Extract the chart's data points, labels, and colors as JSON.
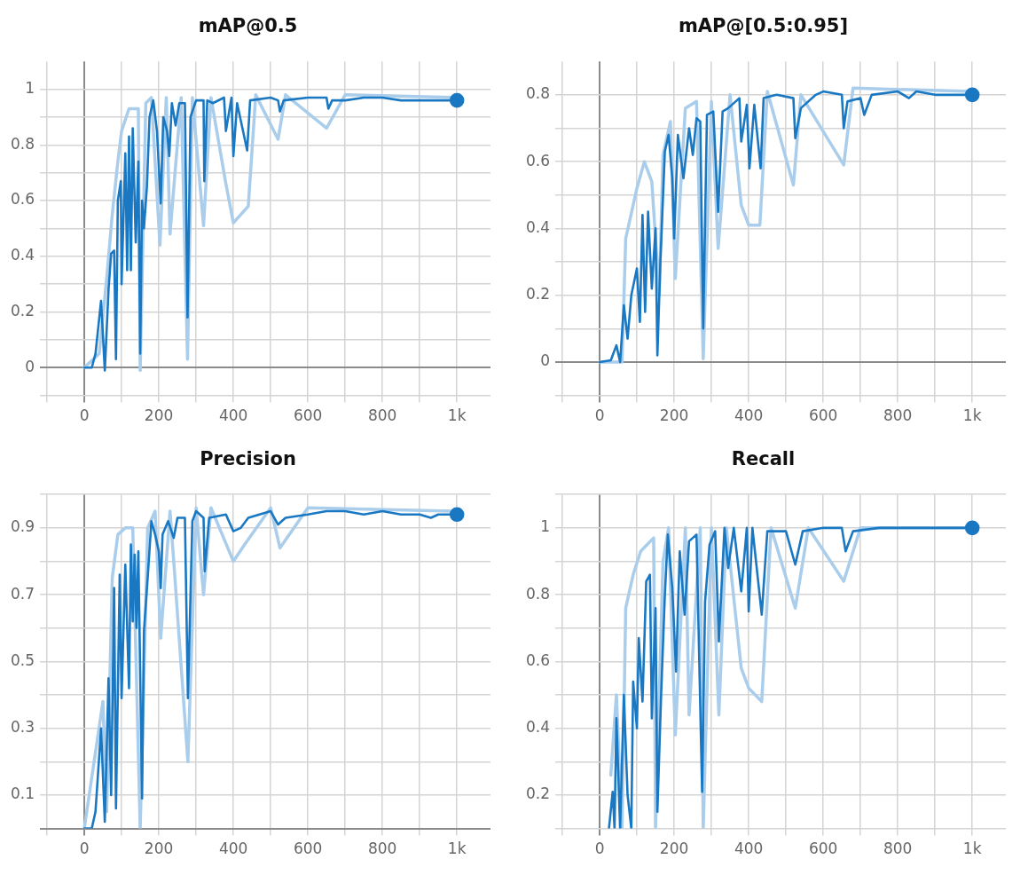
{
  "chart_data": [
    {
      "type": "line",
      "title": "mAP@0.5",
      "xlim": [
        -100,
        1090
      ],
      "ylim": [
        -0.1,
        1.1
      ],
      "xticks": [
        {
          "value": -100,
          "label": null
        },
        0,
        {
          "value": 100,
          "label": null
        },
        200,
        {
          "value": 300,
          "label": null
        },
        400,
        {
          "value": 500,
          "label": null
        },
        600,
        {
          "value": 700,
          "label": null
        },
        800,
        {
          "value": 900,
          "label": null
        },
        {
          "value": 1000,
          "label": "1k"
        }
      ],
      "yticks": [
        {
          "value": -0.1,
          "label": null
        },
        0,
        {
          "value": 0.1,
          "label": null
        },
        0.2,
        {
          "value": 0.3,
          "label": null
        },
        0.4,
        {
          "value": 0.5,
          "label": null
        },
        0.6,
        {
          "value": 0.7,
          "label": null
        },
        0.8,
        {
          "value": 0.9,
          "label": null
        },
        1
      ],
      "grid": true,
      "legend": false,
      "line_style": "solid",
      "series": [
        {
          "color": "#a9cdeb",
          "x": [
            0,
            40,
            60,
            75,
            90,
            100,
            120,
            145,
            150,
            165,
            180,
            203,
            220,
            230,
            260,
            277,
            290,
            320,
            340,
            380,
            400,
            440,
            460,
            520,
            540,
            650,
            700,
            1000
          ],
          "values": [
            0,
            0.05,
            0.32,
            0.55,
            0.74,
            0.85,
            0.93,
            0.93,
            -0.01,
            0.95,
            0.97,
            0.44,
            0.97,
            0.48,
            0.97,
            0.03,
            0.97,
            0.51,
            0.97,
            0.66,
            0.52,
            0.58,
            0.98,
            0.82,
            0.98,
            0.86,
            0.98,
            0.97
          ]
        },
        {
          "color": "#1a78c2",
          "x": [
            0,
            20,
            30,
            45,
            55,
            65,
            72,
            80,
            85,
            90,
            98,
            100,
            110,
            115,
            120,
            125,
            130,
            138,
            145,
            150,
            155,
            160,
            168,
            175,
            185,
            195,
            205,
            212,
            222,
            228,
            235,
            245,
            255,
            270,
            277,
            285,
            300,
            320,
            322,
            330,
            345,
            375,
            380,
            395,
            400,
            410,
            437,
            445,
            500,
            520,
            525,
            535,
            600,
            650,
            655,
            665,
            700,
            750,
            800,
            850,
            900,
            950,
            1000
          ],
          "values": [
            0,
            0,
            0.05,
            0.24,
            -0.01,
            0.28,
            0.41,
            0.42,
            0.03,
            0.6,
            0.67,
            0.3,
            0.77,
            0.35,
            0.83,
            0.35,
            0.86,
            0.45,
            0.74,
            0.05,
            0.6,
            0.5,
            0.65,
            0.9,
            0.96,
            0.85,
            0.59,
            0.9,
            0.85,
            0.76,
            0.95,
            0.87,
            0.95,
            0.95,
            0.18,
            0.9,
            0.96,
            0.96,
            0.67,
            0.96,
            0.95,
            0.97,
            0.85,
            0.97,
            0.76,
            0.95,
            0.78,
            0.96,
            0.97,
            0.96,
            0.92,
            0.96,
            0.97,
            0.97,
            0.93,
            0.96,
            0.96,
            0.97,
            0.97,
            0.96,
            0.96,
            0.96,
            0.96
          ]
        }
      ]
    },
    {
      "type": "line",
      "title": "mAP@[0.5:0.95]",
      "xlim": [
        -100,
        1090
      ],
      "ylim": [
        -0.1,
        0.9
      ],
      "xticks": [
        {
          "value": -100,
          "label": null
        },
        0,
        {
          "value": 100,
          "label": null
        },
        200,
        {
          "value": 300,
          "label": null
        },
        400,
        {
          "value": 500,
          "label": null
        },
        600,
        {
          "value": 700,
          "label": null
        },
        800,
        {
          "value": 900,
          "label": null
        },
        {
          "value": 1000,
          "label": "1k"
        }
      ],
      "yticks": [
        {
          "value": -0.1,
          "label": null
        },
        0,
        {
          "value": 0.1,
          "label": null
        },
        0.2,
        {
          "value": 0.3,
          "label": null
        },
        0.4,
        {
          "value": 0.5,
          "label": null
        },
        0.6,
        {
          "value": 0.7,
          "label": null
        },
        0.8
      ],
      "grid": true,
      "legend": false,
      "line_style": "solid",
      "series": [
        {
          "color": "#a9cdeb",
          "x": [
            0,
            60,
            70,
            100,
            120,
            140,
            160,
            170,
            190,
            203,
            230,
            260,
            278,
            300,
            318,
            350,
            380,
            400,
            430,
            450,
            520,
            540,
            655,
            680,
            1000
          ],
          "values": [
            0,
            0,
            0.37,
            0.52,
            0.6,
            0.54,
            0.2,
            0.62,
            0.72,
            0.25,
            0.76,
            0.78,
            0.01,
            0.78,
            0.34,
            0.8,
            0.47,
            0.41,
            0.41,
            0.81,
            0.53,
            0.8,
            0.59,
            0.82,
            0.81
          ]
        },
        {
          "color": "#1a78c2",
          "x": [
            0,
            30,
            45,
            55,
            65,
            75,
            85,
            100,
            108,
            115,
            122,
            130,
            140,
            150,
            155,
            163,
            175,
            185,
            195,
            200,
            210,
            225,
            240,
            250,
            260,
            270,
            278,
            288,
            305,
            318,
            330,
            345,
            375,
            380,
            395,
            402,
            415,
            432,
            440,
            475,
            520,
            525,
            540,
            580,
            600,
            650,
            655,
            665,
            700,
            710,
            730,
            800,
            830,
            850,
            900,
            950,
            1000
          ],
          "values": [
            0,
            0.005,
            0.05,
            0,
            0.17,
            0.07,
            0.2,
            0.28,
            0.12,
            0.44,
            0.15,
            0.45,
            0.22,
            0.4,
            0.02,
            0.3,
            0.63,
            0.68,
            0.55,
            0.37,
            0.68,
            0.55,
            0.7,
            0.62,
            0.73,
            0.72,
            0.1,
            0.74,
            0.75,
            0.45,
            0.75,
            0.76,
            0.79,
            0.66,
            0.77,
            0.58,
            0.77,
            0.58,
            0.79,
            0.8,
            0.79,
            0.67,
            0.76,
            0.8,
            0.81,
            0.8,
            0.7,
            0.78,
            0.79,
            0.74,
            0.8,
            0.81,
            0.79,
            0.81,
            0.8,
            0.8,
            0.8
          ]
        }
      ]
    },
    {
      "type": "line",
      "title": "Precision",
      "xlim": [
        -100,
        1090
      ],
      "ylim": [
        0,
        1
      ],
      "xticks": [
        {
          "value": -100,
          "label": null
        },
        0,
        {
          "value": 100,
          "label": null
        },
        200,
        {
          "value": 300,
          "label": null
        },
        400,
        {
          "value": 500,
          "label": null
        },
        600,
        {
          "value": 700,
          "label": null
        },
        800,
        {
          "value": 900,
          "label": null
        },
        {
          "value": 1000,
          "label": "1k"
        }
      ],
      "yticks": [
        {
          "value": 0,
          "label": null
        },
        0.1,
        {
          "value": 0.2,
          "label": null
        },
        0.3,
        {
          "value": 0.4,
          "label": null
        },
        0.5,
        {
          "value": 0.6,
          "label": null
        },
        0.7,
        {
          "value": 0.8,
          "label": null
        },
        0.9,
        {
          "value": 1,
          "label": null
        }
      ],
      "grid": true,
      "legend": false,
      "line_style": "solid",
      "series": [
        {
          "color": "#a9cdeb",
          "x": [
            0,
            50,
            60,
            75,
            90,
            110,
            130,
            150,
            170,
            190,
            205,
            230,
            240,
            278,
            300,
            320,
            340,
            400,
            430,
            500,
            525,
            600,
            1000
          ],
          "values": [
            0,
            0.38,
            0.05,
            0.75,
            0.88,
            0.9,
            0.9,
            0,
            0.9,
            0.95,
            0.57,
            0.95,
            0.8,
            0.2,
            0.96,
            0.7,
            0.96,
            0.8,
            0.85,
            0.96,
            0.84,
            0.96,
            0.95
          ]
        },
        {
          "color": "#1a78c2",
          "x": [
            0,
            20,
            30,
            45,
            55,
            65,
            72,
            80,
            85,
            95,
            100,
            110,
            120,
            125,
            130,
            135,
            140,
            145,
            155,
            160,
            170,
            180,
            190,
            200,
            205,
            210,
            225,
            240,
            250,
            270,
            278,
            290,
            300,
            320,
            323,
            335,
            380,
            400,
            420,
            440,
            500,
            520,
            540,
            600,
            650,
            700,
            750,
            800,
            850,
            900,
            930,
            950,
            1000
          ],
          "values": [
            0,
            0,
            0.05,
            0.3,
            0.02,
            0.45,
            0.1,
            0.72,
            0.06,
            0.76,
            0.39,
            0.79,
            0.42,
            0.85,
            0.62,
            0.82,
            0.6,
            0.83,
            0.09,
            0.59,
            0.75,
            0.92,
            0.88,
            0.83,
            0.72,
            0.88,
            0.92,
            0.87,
            0.93,
            0.93,
            0.39,
            0.92,
            0.95,
            0.93,
            0.77,
            0.93,
            0.94,
            0.89,
            0.9,
            0.93,
            0.95,
            0.91,
            0.93,
            0.94,
            0.95,
            0.95,
            0.94,
            0.95,
            0.94,
            0.94,
            0.93,
            0.94,
            0.94
          ]
        }
      ]
    },
    {
      "type": "line",
      "title": "Recall",
      "xlim": [
        -100,
        1090
      ],
      "ylim": [
        0.1,
        1.1
      ],
      "xticks": [
        {
          "value": -100,
          "label": null
        },
        0,
        {
          "value": 100,
          "label": null
        },
        200,
        {
          "value": 300,
          "label": null
        },
        400,
        {
          "value": 500,
          "label": null
        },
        600,
        {
          "value": 700,
          "label": null
        },
        800,
        {
          "value": 900,
          "label": null
        },
        {
          "value": 1000,
          "label": "1k"
        }
      ],
      "yticks": [
        {
          "value": 0.1,
          "label": null
        },
        0.2,
        {
          "value": 0.3,
          "label": null
        },
        0.4,
        {
          "value": 0.5,
          "label": null
        },
        0.6,
        {
          "value": 0.7,
          "label": null
        },
        0.8,
        {
          "value": 0.9,
          "label": null
        },
        1,
        {
          "value": 1.1,
          "label": null
        }
      ],
      "grid": true,
      "legend": false,
      "line_style": "solid",
      "series": [
        {
          "color": "#a9cdeb",
          "x": [
            30,
            45,
            60,
            70,
            90,
            110,
            145,
            150,
            170,
            185,
            203,
            230,
            240,
            270,
            278,
            300,
            320,
            340,
            380,
            400,
            435,
            460,
            525,
            560,
            655,
            700,
            1000
          ],
          "values": [
            0.26,
            0.5,
            0.1,
            0.76,
            0.86,
            0.93,
            0.97,
            0.1,
            0.9,
            1,
            0.38,
            1,
            0.44,
            1,
            0.1,
            1,
            0.44,
            1,
            0.58,
            0.52,
            0.48,
            1,
            0.76,
            1,
            0.84,
            1,
            1
          ]
        },
        {
          "color": "#1a78c2",
          "x": [
            25,
            35,
            40,
            45,
            55,
            65,
            75,
            85,
            90,
            100,
            105,
            115,
            125,
            135,
            140,
            150,
            155,
            165,
            175,
            183,
            195,
            205,
            215,
            228,
            240,
            260,
            275,
            283,
            295,
            310,
            320,
            335,
            345,
            360,
            380,
            395,
            400,
            410,
            435,
            450,
            500,
            525,
            545,
            600,
            650,
            660,
            680,
            750,
            800,
            900,
            1000
          ],
          "values": [
            0.1,
            0.21,
            0.1,
            0.43,
            0.1,
            0.5,
            0.2,
            0.1,
            0.54,
            0.4,
            0.67,
            0.48,
            0.84,
            0.86,
            0.43,
            0.76,
            0.15,
            0.5,
            0.8,
            0.98,
            0.82,
            0.57,
            0.93,
            0.74,
            0.96,
            0.98,
            0.21,
            0.78,
            0.95,
            0.99,
            0.66,
            1,
            0.88,
            1,
            0.81,
            1,
            0.75,
            1,
            0.74,
            0.99,
            0.99,
            0.89,
            0.99,
            1,
            1,
            0.93,
            0.99,
            1,
            1,
            1,
            1
          ]
        }
      ]
    }
  ]
}
